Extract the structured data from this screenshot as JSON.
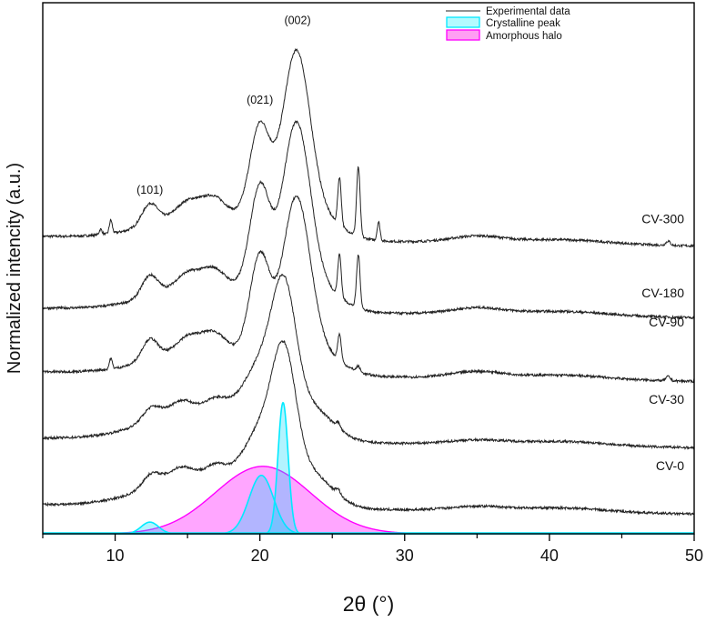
{
  "chart_data": {
    "type": "line",
    "title": "",
    "xlabel": "2θ (°)",
    "ylabel": "Normalized intencity (a.u.)",
    "xlim": [
      5,
      50
    ],
    "ylim": [
      0,
      10
    ],
    "xticks": [
      10,
      20,
      30,
      40,
      50
    ],
    "xtick_labels": [
      "10",
      "20",
      "30",
      "40",
      "50"
    ],
    "minor_xticks": [
      5,
      15,
      25,
      35,
      45
    ],
    "grid": false,
    "legend": {
      "placement": "top-right",
      "entries": [
        {
          "label": "Experimental data",
          "kind": "line",
          "color": "#222222"
        },
        {
          "label": "Crystalline peak",
          "kind": "fill",
          "color": "#00e8ff"
        },
        {
          "label": "Amorphous halo",
          "kind": "fill",
          "color": "#ff00ff"
        }
      ]
    },
    "annotations": [
      {
        "text": "(101)",
        "x": 12.4,
        "y": 6.4
      },
      {
        "text": "(021)",
        "x": 20.0,
        "y": 8.1
      },
      {
        "text": "(002)",
        "x": 22.6,
        "y": 9.6
      }
    ],
    "series": [
      {
        "name": "CV-300",
        "label": "CV-300",
        "baseline": 5.6,
        "label_y": 5.85,
        "peaks": [
          [
            16.5,
            0.5,
            3.5
          ],
          [
            12.4,
            0.4,
            0.55
          ],
          [
            15.0,
            0.25,
            0.8
          ],
          [
            16.8,
            0.3,
            0.8
          ],
          [
            20.0,
            1.8,
            0.7
          ],
          [
            22.5,
            3.2,
            0.95
          ],
          [
            24.0,
            0.4,
            1.6
          ],
          [
            25.5,
            0.9,
            0.12
          ],
          [
            26.8,
            1.3,
            0.12
          ],
          [
            28.2,
            0.35,
            0.1
          ],
          [
            9.7,
            0.25,
            0.1
          ],
          [
            9.0,
            0.1,
            0.1
          ],
          [
            35.0,
            0.12,
            1.8
          ],
          [
            41.0,
            0.08,
            3.0
          ],
          [
            48.2,
            0.08,
            0.15
          ]
        ]
      },
      {
        "name": "CV-180",
        "label": "CV-180",
        "baseline": 4.25,
        "label_y": 4.45,
        "peaks": [
          [
            16.5,
            0.5,
            3.5
          ],
          [
            12.4,
            0.4,
            0.55
          ],
          [
            15.0,
            0.25,
            0.8
          ],
          [
            16.8,
            0.3,
            0.8
          ],
          [
            20.0,
            2.0,
            0.7
          ],
          [
            22.5,
            3.2,
            0.95
          ],
          [
            24.0,
            0.4,
            1.6
          ],
          [
            25.5,
            0.8,
            0.12
          ],
          [
            26.8,
            1.0,
            0.12
          ],
          [
            35.0,
            0.12,
            1.8
          ],
          [
            41.0,
            0.08,
            3.0
          ]
        ]
      },
      {
        "name": "CV-90",
        "label": "CV-90",
        "baseline": 3.05,
        "label_y": 3.9,
        "peaks": [
          [
            16.5,
            0.5,
            3.5
          ],
          [
            12.4,
            0.4,
            0.55
          ],
          [
            15.0,
            0.25,
            0.8
          ],
          [
            16.8,
            0.3,
            0.8
          ],
          [
            20.0,
            1.9,
            0.7
          ],
          [
            22.5,
            3.0,
            0.95
          ],
          [
            24.0,
            0.4,
            1.6
          ],
          [
            25.5,
            0.5,
            0.12
          ],
          [
            26.8,
            0.1,
            0.12
          ],
          [
            9.7,
            0.2,
            0.1
          ],
          [
            35.0,
            0.12,
            1.8
          ],
          [
            41.0,
            0.08,
            3.0
          ],
          [
            48.2,
            0.08,
            0.15
          ]
        ]
      },
      {
        "name": "CV-30",
        "label": "CV-30",
        "baseline": 1.8,
        "label_y": 2.45,
        "peaks": [
          [
            16.0,
            0.6,
            3.5
          ],
          [
            12.5,
            0.25,
            0.6
          ],
          [
            14.5,
            0.2,
            0.8
          ],
          [
            17.0,
            0.2,
            0.7
          ],
          [
            20.3,
            1.2,
            1.3
          ],
          [
            21.7,
            2.0,
            0.8
          ],
          [
            23.5,
            0.6,
            1.5
          ],
          [
            25.4,
            0.1,
            0.15
          ],
          [
            35.0,
            0.08,
            2.0
          ],
          [
            41.0,
            0.08,
            3.0
          ]
        ]
      },
      {
        "name": "CV-0",
        "label": "CV-0",
        "baseline": 0.55,
        "label_y": 1.2,
        "peaks": [
          [
            16.0,
            0.6,
            3.5
          ],
          [
            12.5,
            0.25,
            0.6
          ],
          [
            14.5,
            0.2,
            0.8
          ],
          [
            17.0,
            0.2,
            0.7
          ],
          [
            20.3,
            1.2,
            1.3
          ],
          [
            21.7,
            2.0,
            0.8
          ],
          [
            23.5,
            0.6,
            1.5
          ],
          [
            25.4,
            0.1,
            0.15
          ],
          [
            35.0,
            0.08,
            2.0
          ],
          [
            41.0,
            0.08,
            3.0
          ]
        ]
      }
    ],
    "fits": {
      "amorphous_halo": {
        "center": 20.2,
        "amplitude": 1.27,
        "sigma": 3.3
      },
      "crystalline_peaks": [
        {
          "center": 12.4,
          "amplitude": 0.22,
          "sigma": 0.6
        },
        {
          "center": 20.1,
          "amplitude": 1.1,
          "sigma": 0.85
        },
        {
          "center": 21.6,
          "amplitude": 2.47,
          "sigma": 0.35
        }
      ]
    }
  }
}
